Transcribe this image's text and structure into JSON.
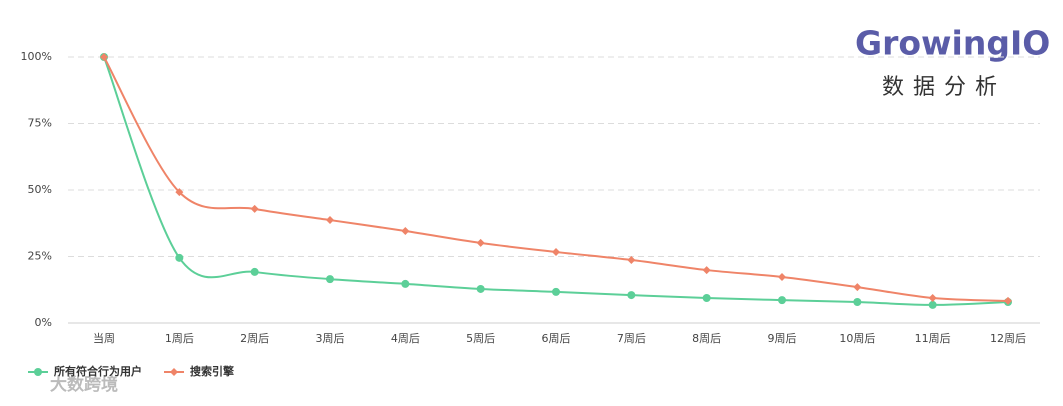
{
  "chart_data": {
    "type": "line",
    "categories": [
      "当周",
      "1周后",
      "2周后",
      "3周后",
      "4周后",
      "5周后",
      "6周后",
      "7周后",
      "8周后",
      "9周后",
      "10周后",
      "11周后",
      "12周后"
    ],
    "series": [
      {
        "name": "所有符合行为用户",
        "color": "#5ccf98",
        "values": [
          100,
          24.5,
          19.2,
          16.5,
          14.7,
          12.8,
          11.7,
          10.5,
          9.4,
          8.6,
          7.9,
          6.8,
          7.9
        ]
      },
      {
        "name": "搜索引擎",
        "color": "#ef8468",
        "values": [
          100,
          49.2,
          42.9,
          38.7,
          34.6,
          30.1,
          26.7,
          23.7,
          19.9,
          17.3,
          13.5,
          9.4,
          8.3
        ]
      }
    ],
    "ylim": [
      0,
      100
    ],
    "yticks": [
      {
        "value": 0,
        "label": "0%"
      },
      {
        "value": 25,
        "label": "25%"
      },
      {
        "value": 50,
        "label": "50%"
      },
      {
        "value": 75,
        "label": "75%"
      },
      {
        "value": 100,
        "label": "100%"
      }
    ],
    "grid": true,
    "legend": "bottom-left"
  },
  "logo": {
    "name": "GrowingIO",
    "subtitle": "数据分析"
  },
  "watermark": "大数跨境"
}
